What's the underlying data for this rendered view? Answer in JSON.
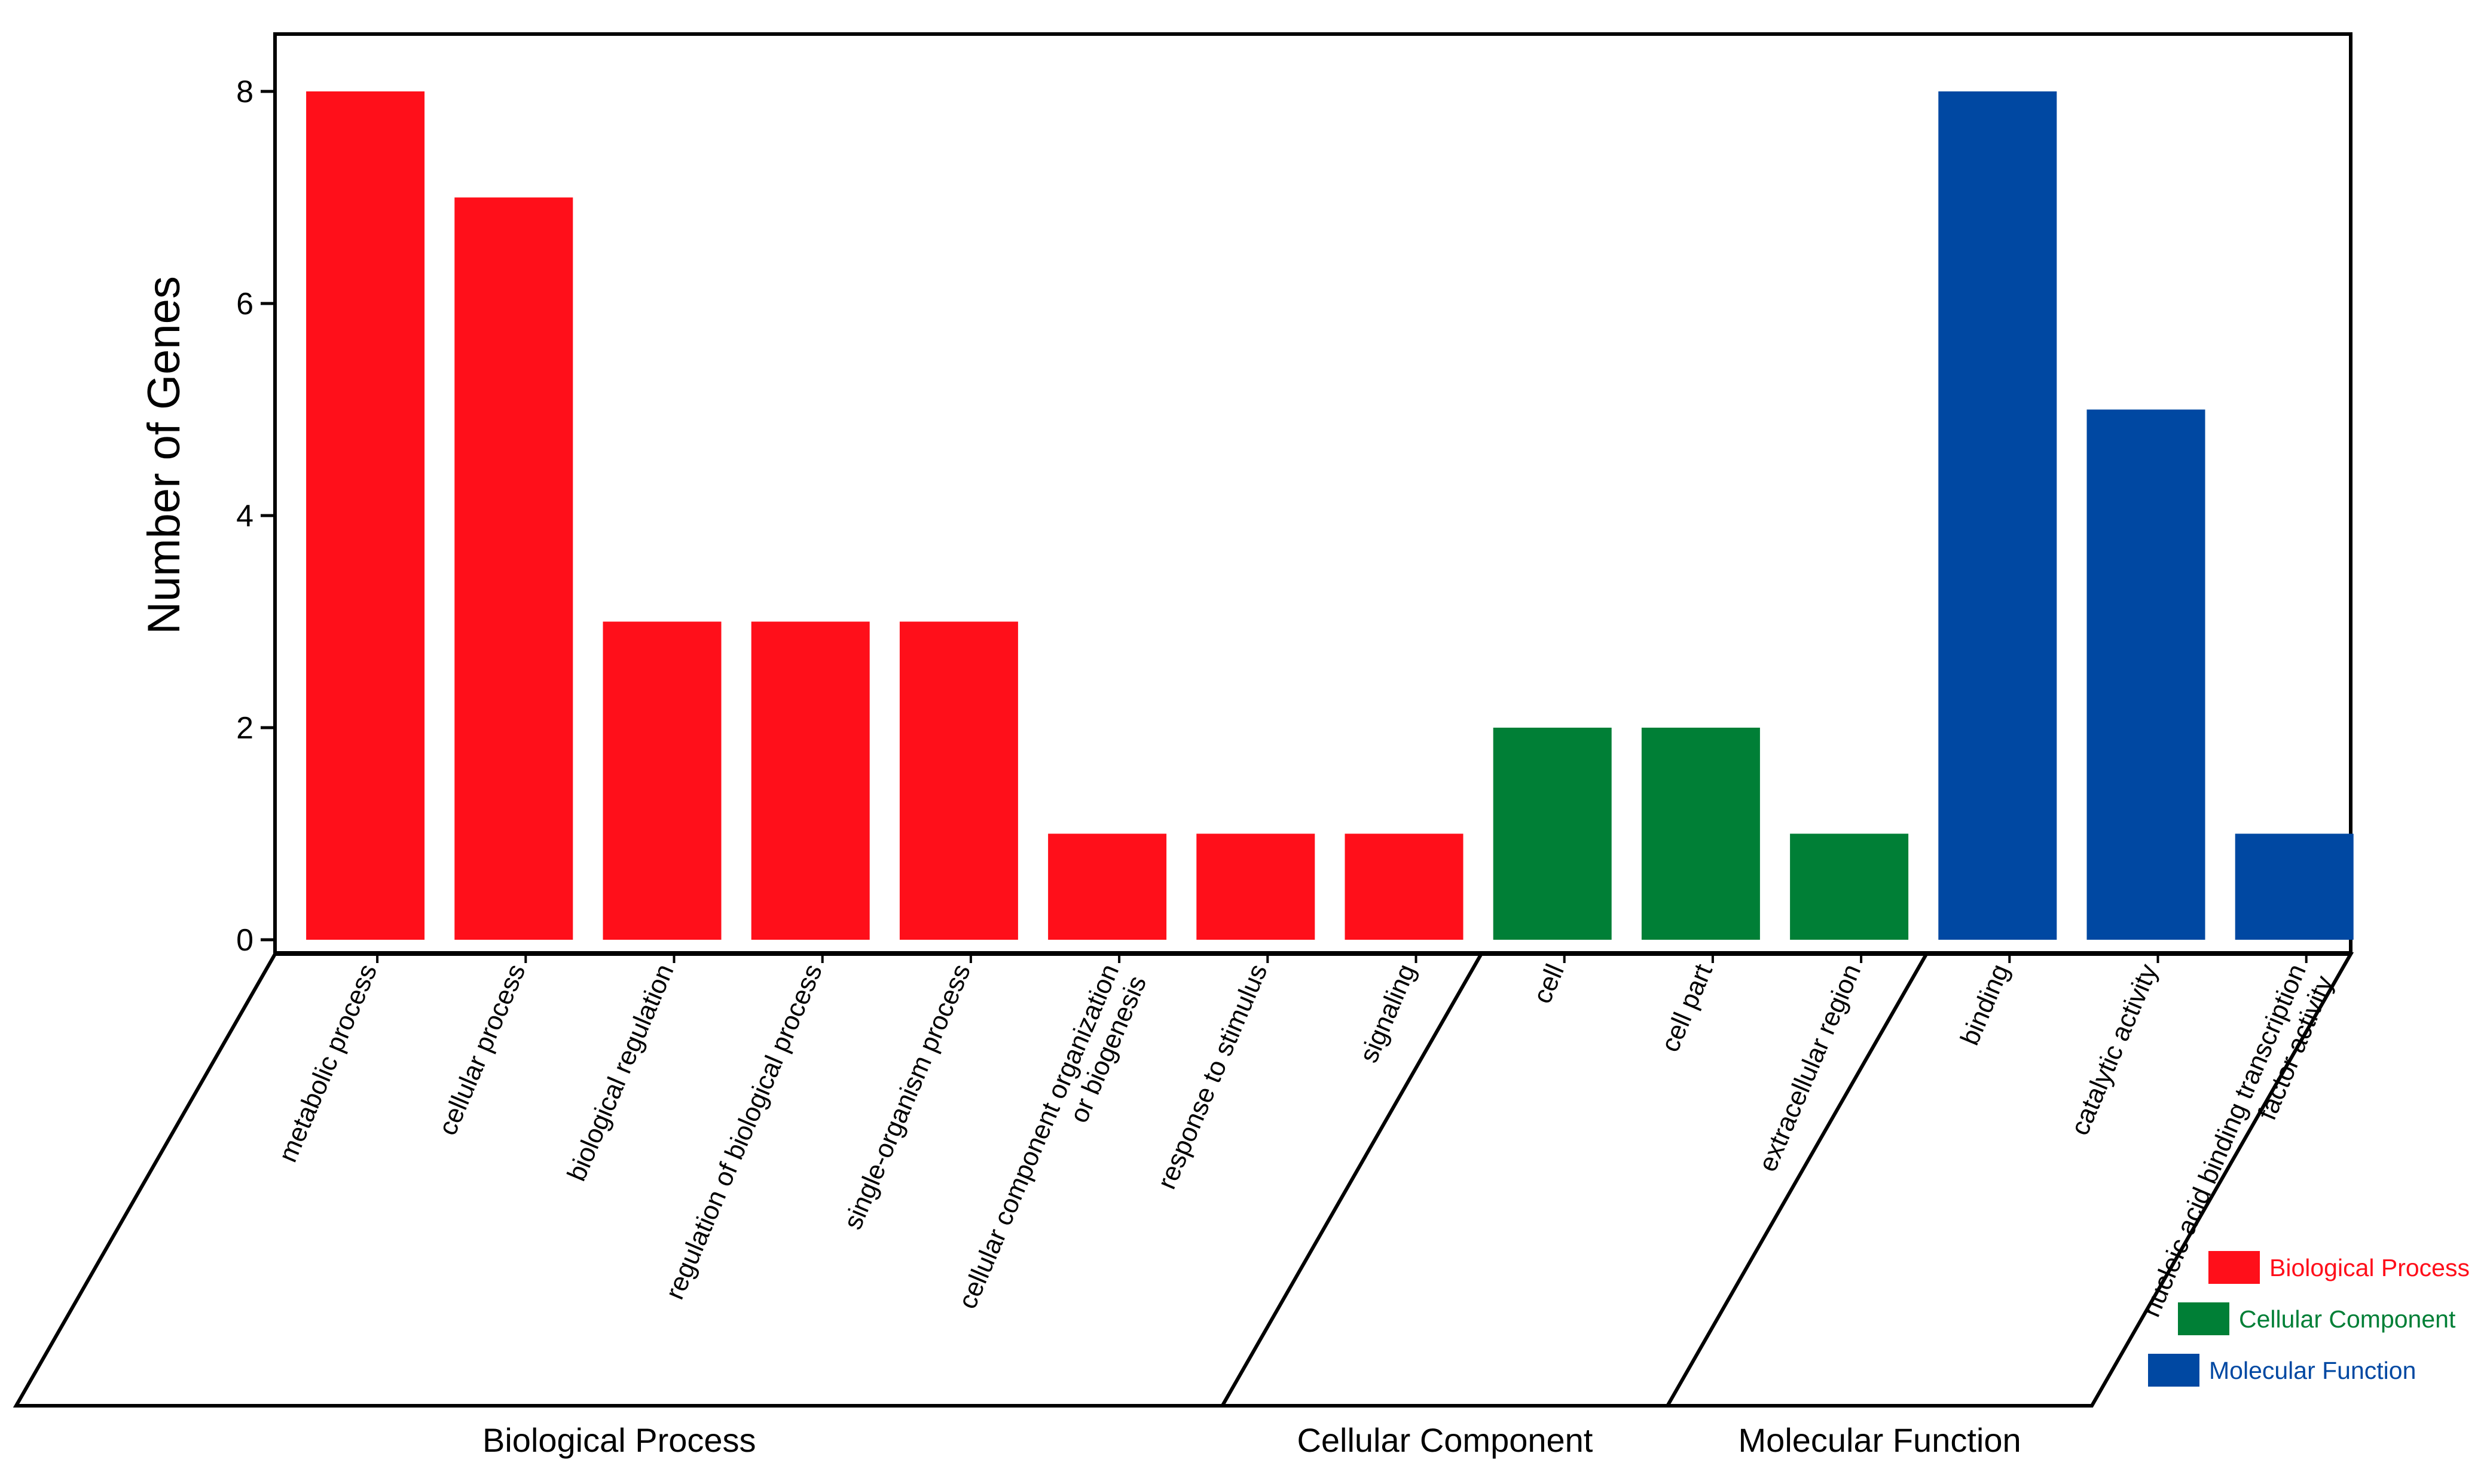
{
  "chart_data": {
    "type": "bar",
    "ylabel": "Number of Genes",
    "ylim": [
      0,
      8.5
    ],
    "yticks": [
      0,
      2,
      4,
      6,
      8
    ],
    "grid": false,
    "legend_position": "bottom-right",
    "groups": [
      {
        "name": "Biological Process",
        "color": "#ff0f1a",
        "categories": [
          {
            "label": [
              "metabolic process"
            ],
            "value": 8
          },
          {
            "label": [
              "cellular process"
            ],
            "value": 7
          },
          {
            "label": [
              "biological regulation"
            ],
            "value": 3
          },
          {
            "label": [
              "regulation of biological process"
            ],
            "value": 3
          },
          {
            "label": [
              "single-organism process"
            ],
            "value": 3
          },
          {
            "label": [
              "cellular component organization",
              "or biogenesis"
            ],
            "value": 1
          },
          {
            "label": [
              "response to stimulus"
            ],
            "value": 1
          },
          {
            "label": [
              "signaling"
            ],
            "value": 1
          }
        ]
      },
      {
        "name": "Cellular Component",
        "color": "#007f36",
        "categories": [
          {
            "label": [
              "cell"
            ],
            "value": 2
          },
          {
            "label": [
              "cell part"
            ],
            "value": 2
          },
          {
            "label": [
              "extracellular region"
            ],
            "value": 1
          }
        ]
      },
      {
        "name": "Molecular Function",
        "color": "#0048a2",
        "categories": [
          {
            "label": [
              "binding"
            ],
            "value": 8
          },
          {
            "label": [
              "catalytic activity"
            ],
            "value": 5
          },
          {
            "label": [
              "nucleic acid binding transcription",
              "factor activity"
            ],
            "value": 1
          }
        ]
      }
    ],
    "legend": [
      "Biological Process",
      "Cellular Component",
      "Molecular Function"
    ]
  }
}
